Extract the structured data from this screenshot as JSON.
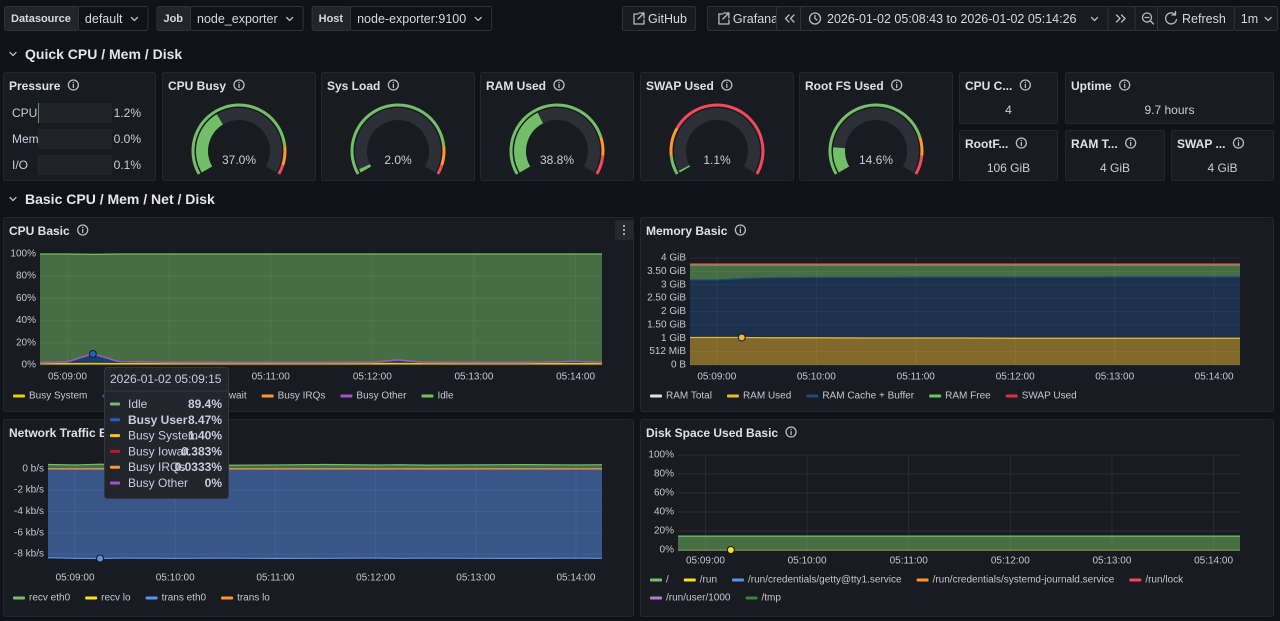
{
  "toolbar": {
    "variables": [
      {
        "label": "Datasource",
        "value": "default"
      },
      {
        "label": "Job",
        "value": "node_exporter"
      },
      {
        "label": "Host",
        "value": "node-exporter:9100"
      }
    ],
    "links": [
      "GitHub",
      "Grafana"
    ],
    "time_range": "2026-01-02 05:08:43 to 2026-01-02 05:14:26",
    "refresh": "Refresh",
    "interval": "1m"
  },
  "rows": [
    "Quick CPU / Mem / Disk",
    "Basic CPU / Mem / Net / Disk"
  ],
  "pressure": {
    "title": "Pressure",
    "range": [
      0,
      100
    ],
    "color": "#73bf69",
    "categories": [
      "CPU",
      "Mem",
      "I/O"
    ],
    "values": [
      1.2,
      0.0,
      0.1
    ],
    "value_labels": [
      "1.2%",
      "0.0%",
      "0.1%"
    ]
  },
  "gauges": [
    {
      "title": "CPU Busy",
      "value": 37.0,
      "value_label": "37.0%",
      "range": [
        0,
        100
      ],
      "color": "#73bf69",
      "thresholds": [
        {
          "value": 0,
          "color": "#73bf69"
        },
        {
          "value": 85,
          "color": "#ff9830"
        },
        {
          "value": 95,
          "color": "#f2495c"
        }
      ]
    },
    {
      "title": "Sys Load",
      "value": 2.0,
      "value_label": "2.0%",
      "range": [
        0,
        100
      ],
      "color": "#73bf69",
      "thresholds": [
        {
          "value": 0,
          "color": "#73bf69"
        },
        {
          "value": 85,
          "color": "#ff9830"
        },
        {
          "value": 95,
          "color": "#f2495c"
        }
      ]
    },
    {
      "title": "RAM Used",
      "value": 38.8,
      "value_label": "38.8%",
      "range": [
        0,
        100
      ],
      "color": "#73bf69",
      "thresholds": [
        {
          "value": 0,
          "color": "#73bf69"
        },
        {
          "value": 80,
          "color": "#ff9830"
        },
        {
          "value": 90,
          "color": "#f2495c"
        }
      ]
    },
    {
      "title": "SWAP Used",
      "value": 1.1,
      "value_label": "1.1%",
      "range": [
        0,
        100
      ],
      "color": "#73bf69",
      "thresholds": [
        {
          "value": 0,
          "color": "#73bf69"
        },
        {
          "value": 10,
          "color": "#ff9830"
        },
        {
          "value": 25,
          "color": "#f2495c"
        }
      ]
    },
    {
      "title": "Root FS Used",
      "value": 14.6,
      "value_label": "14.6%",
      "range": [
        0,
        100
      ],
      "color": "#73bf69",
      "thresholds": [
        {
          "value": 0,
          "color": "#73bf69"
        },
        {
          "value": 80,
          "color": "#ff9830"
        },
        {
          "value": 90,
          "color": "#f2495c"
        }
      ]
    }
  ],
  "stats": [
    {
      "title": "CPU C...",
      "value": "4"
    },
    {
      "title": "Uptime",
      "value": "9.7 hours"
    },
    {
      "title": "RootF...",
      "value": "106 GiB"
    },
    {
      "title": "RAM T...",
      "value": "4 GiB"
    },
    {
      "title": "SWAP ...",
      "value": "4 GiB"
    }
  ],
  "crosshair_x": 9.25,
  "chart_data": [
    {
      "type": "area",
      "title": "CPU Basic",
      "stacked": true,
      "grid": true,
      "hover_series": 1,
      "x": [
        8.73,
        9.0,
        9.25,
        9.5,
        10.0,
        10.5,
        11.0,
        11.5,
        12.0,
        12.25,
        12.5,
        13.0,
        13.5,
        14.0,
        14.26
      ],
      "xlim": [
        8.73,
        14.26
      ],
      "xticks": [
        {
          "value": 9,
          "label": "05:09:00"
        },
        {
          "value": 10,
          "label": "05:10:00"
        },
        {
          "value": 11,
          "label": "05:11:00"
        },
        {
          "value": 12,
          "label": "05:12:00"
        },
        {
          "value": 13,
          "label": "05:13:00"
        },
        {
          "value": 14,
          "label": "05:14:00"
        }
      ],
      "ylim": [
        0,
        100
      ],
      "yticks": [
        {
          "value": 0,
          "label": "0%"
        },
        {
          "value": 20,
          "label": "20%"
        },
        {
          "value": 40,
          "label": "40%"
        },
        {
          "value": 60,
          "label": "60%"
        },
        {
          "value": 80,
          "label": "80%"
        },
        {
          "value": 100,
          "label": "100%"
        }
      ],
      "series": [
        {
          "name": "Busy System",
          "color": "#f2cc0c",
          "values": [
            1.3,
            1.3,
            1.4,
            1.3,
            1.3,
            1.3,
            1.3,
            1.3,
            1.3,
            1.4,
            1.3,
            1.3,
            1.3,
            1.3,
            1.3
          ]
        },
        {
          "name": "Busy User",
          "color": "#1f60c4",
          "values": [
            0.6,
            1.2,
            8.47,
            1.5,
            0.8,
            0.7,
            0.7,
            0.7,
            0.8,
            2.8,
            0.8,
            0.7,
            0.7,
            1.6,
            0.8
          ]
        },
        {
          "name": "Busy Iowait",
          "color": "#c4162a",
          "values": [
            0.4,
            0.4,
            0.383,
            0.4,
            0.4,
            0.4,
            0.4,
            0.4,
            0.4,
            0.4,
            0.4,
            0.4,
            0.4,
            0.4,
            0.4
          ]
        },
        {
          "name": "Busy IRQs",
          "color": "#ff9830",
          "values": [
            0.03,
            0.03,
            0.0333,
            0.03,
            0.03,
            0.03,
            0.03,
            0.03,
            0.03,
            0.03,
            0.03,
            0.03,
            0.03,
            0.03,
            0.03
          ]
        },
        {
          "name": "Busy Other",
          "color": "#a352cc",
          "values": [
            0,
            0,
            0,
            0,
            0,
            0,
            0,
            0,
            0,
            0,
            0,
            0,
            0,
            0,
            0
          ]
        },
        {
          "name": "Idle",
          "color": "#73bf69",
          "values": [
            97.67,
            97.07,
            89.4,
            96.77,
            97.47,
            97.57,
            97.57,
            97.57,
            97.47,
            95.37,
            97.47,
            97.57,
            97.57,
            96.67,
            97.47
          ]
        }
      ]
    },
    {
      "type": "area",
      "title": "Memory Basic",
      "stacked": true,
      "grid": true,
      "hover_series": 1,
      "x": [
        8.73,
        9.0,
        9.25,
        9.5,
        10.0,
        10.5,
        11.0,
        11.5,
        12.0,
        12.25,
        12.5,
        13.0,
        13.5,
        14.0,
        14.26
      ],
      "xlim": [
        8.73,
        14.26
      ],
      "xticks": [
        {
          "value": 9,
          "label": "05:09:00"
        },
        {
          "value": 10,
          "label": "05:10:00"
        },
        {
          "value": 11,
          "label": "05:11:00"
        },
        {
          "value": 12,
          "label": "05:12:00"
        },
        {
          "value": 13,
          "label": "05:13:00"
        },
        {
          "value": 14,
          "label": "05:14:00"
        }
      ],
      "ylim": [
        0,
        4
      ],
      "yticks": [
        {
          "value": 0,
          "label": "0 B"
        },
        {
          "value": 0.5,
          "label": "512 MiB"
        },
        {
          "value": 1,
          "label": "1 GiB"
        },
        {
          "value": 1.5,
          "label": "1.50 GiB"
        },
        {
          "value": 2,
          "label": "2 GiB"
        },
        {
          "value": 2.5,
          "label": "2.50 GiB"
        },
        {
          "value": 3,
          "label": "3 GiB"
        },
        {
          "value": 3.5,
          "label": "3.50 GiB"
        },
        {
          "value": 4,
          "label": "4 GiB"
        }
      ],
      "series": [
        {
          "name": "RAM Total",
          "color": "#e0e0e0",
          "stack": false,
          "fill": false,
          "values": [
            3.74,
            3.74,
            3.74,
            3.74,
            3.74,
            3.74,
            3.74,
            3.74,
            3.74,
            3.74,
            3.74,
            3.74,
            3.74,
            3.74,
            3.74
          ]
        },
        {
          "name": "RAM Used",
          "color": "#eab839",
          "values": [
            1.03,
            1.03,
            1.03,
            1.02,
            1.02,
            1.01,
            1.01,
            1.01,
            1.0,
            1.0,
            1.0,
            1.0,
            1.0,
            1.0,
            1.0
          ]
        },
        {
          "name": "RAM Cache + Buffer",
          "color": "#1f4a7a",
          "values": [
            2.15,
            2.15,
            2.2,
            2.24,
            2.25,
            2.26,
            2.27,
            2.27,
            2.28,
            2.28,
            2.28,
            2.29,
            2.29,
            2.29,
            2.29
          ]
        },
        {
          "name": "RAM Free",
          "color": "#73bf69",
          "values": [
            0.56,
            0.56,
            0.51,
            0.48,
            0.47,
            0.47,
            0.46,
            0.46,
            0.46,
            0.46,
            0.46,
            0.45,
            0.45,
            0.45,
            0.45
          ]
        },
        {
          "name": "SWAP Used",
          "color": "#e02f44",
          "fill": false,
          "values": [
            0.04,
            0.04,
            0.04,
            0.04,
            0.04,
            0.04,
            0.04,
            0.04,
            0.04,
            0.04,
            0.04,
            0.04,
            0.04,
            0.04,
            0.04
          ]
        }
      ]
    },
    {
      "type": "area",
      "title": "Network Traffic Basic",
      "stacked": false,
      "grid": true,
      "hover_series": 2,
      "x": [
        8.73,
        9.0,
        9.25,
        9.5,
        10.0,
        10.5,
        11.0,
        11.5,
        12.0,
        12.25,
        12.5,
        13.0,
        13.5,
        14.0,
        14.26
      ],
      "xlim": [
        8.73,
        14.26
      ],
      "xticks": [
        {
          "value": 9,
          "label": "05:09:00"
        },
        {
          "value": 10,
          "label": "05:10:00"
        },
        {
          "value": 11,
          "label": "05:11:00"
        },
        {
          "value": 12,
          "label": "05:12:00"
        },
        {
          "value": 13,
          "label": "05:13:00"
        },
        {
          "value": 14,
          "label": "05:14:00"
        }
      ],
      "ylim": [
        -8560,
        560
      ],
      "yticks": [
        {
          "value": 0,
          "label": "0 b/s"
        },
        {
          "value": -2000,
          "label": "-2 kb/s"
        },
        {
          "value": -4000,
          "label": "-4 kb/s"
        },
        {
          "value": -6000,
          "label": "-6 kb/s"
        },
        {
          "value": -8000,
          "label": "-8 kb/s"
        }
      ],
      "series": [
        {
          "name": "recv eth0",
          "color": "#73bf69",
          "values": [
            420,
            380,
            450,
            360,
            400,
            350,
            380,
            420,
            370,
            400,
            360,
            390,
            410,
            380,
            400
          ]
        },
        {
          "name": "recv lo",
          "color": "#fade2a",
          "values": [
            0,
            0,
            0,
            0,
            0,
            0,
            0,
            0,
            0,
            0,
            0,
            0,
            0,
            0,
            0
          ]
        },
        {
          "name": "trans eth0",
          "color": "#5794f2",
          "values": [
            -8350,
            -8400,
            -8420,
            -8380,
            -8400,
            -8390,
            -8410,
            -8400,
            -8380,
            -8400,
            -8390,
            -8400,
            -8410,
            -8390,
            -8400
          ]
        },
        {
          "name": "trans lo",
          "color": "#ff9830",
          "values": [
            0,
            0,
            0,
            0,
            0,
            0,
            0,
            0,
            0,
            0,
            0,
            0,
            0,
            0,
            0
          ]
        }
      ]
    },
    {
      "type": "area",
      "title": "Disk Space Used Basic",
      "stacked": false,
      "grid": true,
      "hover_series": 1,
      "x": [
        8.73,
        9.0,
        9.25,
        9.5,
        10.0,
        10.5,
        11.0,
        11.5,
        12.0,
        12.25,
        12.5,
        13.0,
        13.5,
        14.0,
        14.26
      ],
      "xlim": [
        8.73,
        14.26
      ],
      "xticks": [
        {
          "value": 9,
          "label": "05:09:00"
        },
        {
          "value": 10,
          "label": "05:10:00"
        },
        {
          "value": 11,
          "label": "05:11:00"
        },
        {
          "value": 12,
          "label": "05:12:00"
        },
        {
          "value": 13,
          "label": "05:13:00"
        },
        {
          "value": 14,
          "label": "05:14:00"
        }
      ],
      "ylim": [
        0,
        100
      ],
      "yticks": [
        {
          "value": 0,
          "label": "0%"
        },
        {
          "value": 20,
          "label": "20%"
        },
        {
          "value": 40,
          "label": "40%"
        },
        {
          "value": 60,
          "label": "60%"
        },
        {
          "value": 80,
          "label": "80%"
        },
        {
          "value": 100,
          "label": "100%"
        }
      ],
      "series": [
        {
          "name": "/",
          "color": "#73bf69",
          "values": [
            14.6,
            14.6,
            14.6,
            14.6,
            14.6,
            14.6,
            14.6,
            14.6,
            14.6,
            14.6,
            14.6,
            14.6,
            14.6,
            14.6,
            14.6
          ]
        },
        {
          "name": "/run",
          "color": "#fade2a",
          "values": [
            0,
            0,
            0,
            0,
            0,
            0,
            0,
            0,
            0,
            0,
            0,
            0,
            0,
            0,
            0
          ]
        },
        {
          "name": "/run/credentials/getty@tty1.service",
          "color": "#5794f2",
          "values": [
            0,
            0,
            0,
            0,
            0,
            0,
            0,
            0,
            0,
            0,
            0,
            0,
            0,
            0,
            0
          ]
        },
        {
          "name": "/run/credentials/systemd-journald.service",
          "color": "#ff9830",
          "values": [
            0,
            0,
            0,
            0,
            0,
            0,
            0,
            0,
            0,
            0,
            0,
            0,
            0,
            0,
            0
          ]
        },
        {
          "name": "/run/lock",
          "color": "#f2495c",
          "values": [
            0,
            0,
            0,
            0,
            0,
            0,
            0,
            0,
            0,
            0,
            0,
            0,
            0,
            0,
            0
          ]
        },
        {
          "name": "/run/user/1000",
          "color": "#b877d9",
          "values": [
            0,
            0,
            0,
            0,
            0,
            0,
            0,
            0,
            0,
            0,
            0,
            0,
            0,
            0,
            0
          ]
        },
        {
          "name": "/tmp",
          "color": "#37872d",
          "values": [
            0,
            0,
            0,
            0,
            0,
            0,
            0,
            0,
            0,
            0,
            0,
            0,
            0,
            0,
            0
          ]
        }
      ]
    }
  ],
  "tooltip": {
    "time": "2026-01-02 05:09:15",
    "highlight_index": 1,
    "rows": [
      {
        "name": "Idle",
        "value": "89.4%",
        "color": "#73bf69"
      },
      {
        "name": "Busy User",
        "value": "8.47%",
        "color": "#1f60c4"
      },
      {
        "name": "Busy System",
        "value": "1.40%",
        "color": "#f2cc0c"
      },
      {
        "name": "Busy Iowait",
        "value": "0.383%",
        "color": "#c4162a"
      },
      {
        "name": "Busy IRQs",
        "value": "0.0333%",
        "color": "#ff9830"
      },
      {
        "name": "Busy Other",
        "value": "0%",
        "color": "#a352cc"
      }
    ]
  }
}
